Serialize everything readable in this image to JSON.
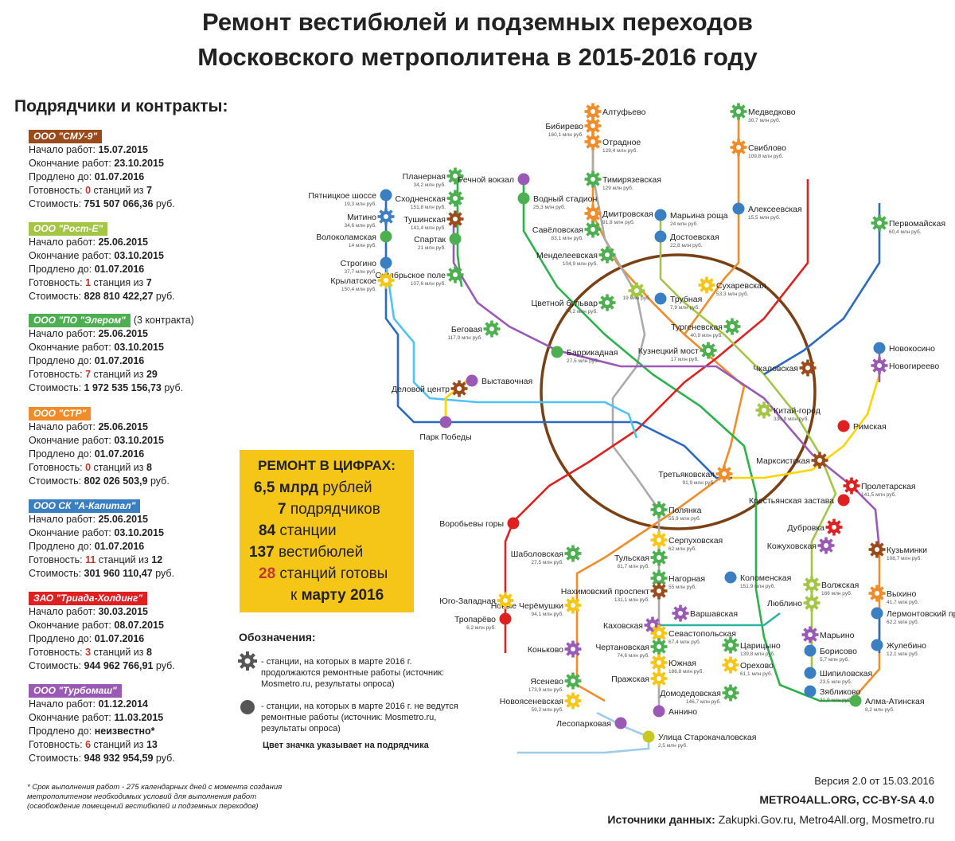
{
  "title_line1": "Ремонт вестибюлей и подземных переходов",
  "title_line2": "Московского метрополитена в 2015-2016 году",
  "contractors_heading": "Подрядчики и контракты:",
  "contractors": [
    {
      "name": "ООО \"СМУ-9\"",
      "color": "#9b4a1c",
      "note": "",
      "start_label": "Начало работ: ",
      "start": "15.07.2015",
      "end_label": "Окончание работ: ",
      "end": "23.10.2015",
      "ext_label": "Продлено до: ",
      "ext": "01.07.2016",
      "ready_label": "Готовность: ",
      "ready_done": "0",
      "ready_mid": " станций из ",
      "ready_total": "7",
      "cost_label": "Стоимость: ",
      "cost": "751 507 066,36",
      "cost_unit": " руб."
    },
    {
      "name": "ООО \"Рост-Е\"",
      "color": "#a3c644",
      "note": "",
      "start_label": "Начало работ: ",
      "start": "25.06.2015",
      "end_label": "Окончание работ:  ",
      "end": "03.10.2015",
      "ext_label": "Продлено до: ",
      "ext": "01.07.2016",
      "ready_label": "Готовность: ",
      "ready_done": "1",
      "ready_mid": " станция из ",
      "ready_total": "7",
      "cost_label": "Стоимость: ",
      "cost": "828 810 422,27",
      "cost_unit": " руб."
    },
    {
      "name": "ООО \"ПО \"Элером\"",
      "color": "#4caf50",
      "note": "(3 контракта)",
      "start_label": "Начало работ: ",
      "start": "25.06.2015",
      "end_label": "Окончание работ: ",
      "end": "03.10.2015",
      "ext_label": "Продлено до: ",
      "ext": "01.07.2016",
      "ready_label": "Готовность: ",
      "ready_done": "7",
      "ready_mid": " станций из ",
      "ready_total": "29",
      "cost_label": "Стоимость: ",
      "cost": "1 972 535 156,73",
      "cost_unit": " руб."
    },
    {
      "name": "ООО \"СТР\"",
      "color": "#f28c28",
      "note": "",
      "start_label": "Начало работ: ",
      "start": "25.06.2015",
      "end_label": "Окончание работ: ",
      "end": "03.10.2015",
      "ext_label": "Продлено до: ",
      "ext": "01.07.2016",
      "ready_label": "Готовность: ",
      "ready_done": "0",
      "ready_mid": " станций из ",
      "ready_total": "8",
      "cost_label": "Стоимость: ",
      "cost": "802 026 503,9",
      "cost_unit": " руб."
    },
    {
      "name": "ООО СК \"А-Капитал\"",
      "color": "#3a7fc1",
      "note": "",
      "start_label": "Начало работ: ",
      "start": "25.06.2015",
      "end_label": "Окончание работ: ",
      "end": "03.10.2015",
      "ext_label": "Продлено до: ",
      "ext": "01.07.2016",
      "ready_label": "Готовность: ",
      "ready_done": "11",
      "ready_mid": " станций из ",
      "ready_total": "12",
      "cost_label": "Стоимость: ",
      "cost": "301 960 110,47",
      "cost_unit": " руб."
    },
    {
      "name": "ЗАО \"Триада-Холдинг\"",
      "color": "#e02020",
      "note": "",
      "start_label": "Начало работ:  ",
      "start": "30.03.2015",
      "end_label": "Окончание работ:  ",
      "end": "08.07.2015",
      "ext_label": "Продлено до: ",
      "ext": "01.07.2016",
      "ready_label": "Готовность: ",
      "ready_done": "3",
      "ready_mid": " станций из ",
      "ready_total": "8",
      "cost_label": "Стоимость: ",
      "cost": "944 962 766,91",
      "cost_unit": " руб."
    },
    {
      "name": "ООО \"Турбомаш\"",
      "color": "#9b59b6",
      "note": "",
      "start_label": "Начало работ: ",
      "start": "01.12.2014",
      "end_label": "Окончание работ: ",
      "end": "11.03.2015",
      "ext_label": "Продлено до: ",
      "ext": "неизвестно*",
      "ready_label": "Готовность: ",
      "ready_done": "6",
      "ready_mid": " станций из ",
      "ready_total": "13",
      "cost_label": "Стоимость: ",
      "cost": "948 932 954,59",
      "cost_unit": " руб."
    }
  ],
  "summary": {
    "heading": "РЕМОНТ В ЦИФРАХ:",
    "l1_num": "6,5 млрд",
    "l1_text": " рублей",
    "l2_num": "7",
    "l2_text": " подрядчиков",
    "l3_num": "84",
    "l3_text": " станции",
    "l4_num": "137",
    "l4_text": " вестибюлей",
    "l5_num": "28",
    "l5_text": " станций готовы",
    "l6_text": "к ",
    "l6_bold": "марту 2016"
  },
  "legend": {
    "heading": "Обозначения:",
    "gear_text": "- станции, на которых в марте 2016 г. продолжаются ремонтные работы (источник: Mosmetro.ru, результаты опроса)",
    "dot_text": "- станции, на которых в марте 2016 г. не ведутся ремонтные работы (источник: Mosmetro.ru, результаты опроса)",
    "color_note": "Цвет значка указывает на подрядчика"
  },
  "footnote": "* Срок выполнения работ - 275 календарных дней с момента создания метрополитеном необходимых условий для выполнения работ (освобождение помещений вестибюлей и подземных переходов)",
  "version": "Версия 2.0 от 15.03.2016",
  "license": "METRO4ALL.ORG, CC-BY-SA 4.0",
  "sources_label": "Источники данных:",
  "sources_text": " Zakupki.Gov.ru, Metro4All.org, Mosmetro.ru",
  "stations": [
    {
      "name": "Алтуфьево",
      "cost": "",
      "type": "gear",
      "c": "#f28c28"
    },
    {
      "name": "Бибирево",
      "cost": "160,1 млн руб.",
      "type": "gear",
      "c": "#f28c28"
    },
    {
      "name": "Отрадное",
      "cost": "129,4 млн руб.",
      "type": "gear",
      "c": "#f28c28"
    },
    {
      "name": "Тимирязевская",
      "cost": "129 млн руб.",
      "type": "gear",
      "c": "#4caf50"
    },
    {
      "name": "Дмитровская",
      "cost": "91,8 млн руб.",
      "type": "gear",
      "c": "#f28c28"
    },
    {
      "name": "Савёловская",
      "cost": "83,1 млн руб.",
      "type": "gear",
      "c": "#4caf50"
    },
    {
      "name": "Менделеевская",
      "cost": "104,9 млн руб.",
      "type": "gear",
      "c": "#4caf50"
    },
    {
      "name": "Цветной бульвар",
      "cost": "74,2 млн руб.",
      "type": "gear",
      "c": "#4caf50"
    },
    {
      "name": "",
      "cost": "19 млн руб.",
      "type": "gear",
      "c": "#a3c644"
    },
    {
      "name": "Медведково",
      "cost": "30,7 млн руб.",
      "type": "gear",
      "c": "#4caf50"
    },
    {
      "name": "Свиблово",
      "cost": "109,8 млн руб.",
      "type": "gear",
      "c": "#f28c28"
    },
    {
      "name": "Алексеевская",
      "cost": "15,5 млн руб.",
      "type": "dot",
      "c": "#3a7fc1"
    },
    {
      "name": "Марьина роща",
      "cost": "24 млн руб.",
      "type": "dot",
      "c": "#3a7fc1"
    },
    {
      "name": "Достоевская",
      "cost": "22,8 млн руб.",
      "type": "dot",
      "c": "#3a7fc1"
    },
    {
      "name": "Трубная",
      "cost": "7,9 млн руб.",
      "type": "dot",
      "c": "#3a7fc1"
    },
    {
      "name": "Сухаревская",
      "cost": "53,3 млн руб.",
      "type": "gear",
      "c": "#f5c518"
    },
    {
      "name": "Тургеневская",
      "cost": "40,9 млн руб.",
      "type": "gear",
      "c": "#4caf50"
    },
    {
      "name": "Кузнецкий мост",
      "cost": "17 млн руб.",
      "type": "gear",
      "c": "#4caf50"
    },
    {
      "name": "Первомайская",
      "cost": "60,4 млн руб.",
      "type": "gear",
      "c": "#4caf50"
    },
    {
      "name": "Новокосино",
      "cost": "",
      "type": "dot",
      "c": "#3a7fc1"
    },
    {
      "name": "Новогиреево",
      "cost": "",
      "type": "gear",
      "c": "#9b59b6"
    },
    {
      "name": "Чкаловская",
      "cost": "",
      "type": "gear",
      "c": "#9b4a1c"
    },
    {
      "name": "Китай-город",
      "cost": "330,9 млн руб.",
      "type": "gear",
      "c": "#a3c644"
    },
    {
      "name": "Римская",
      "cost": "",
      "type": "dot",
      "c": "#e02020"
    },
    {
      "name": "Марксистская",
      "cost": "",
      "type": "gear",
      "c": "#9b4a1c"
    },
    {
      "name": "Пролетарская",
      "cost": "141,5 млн руб.",
      "type": "gear",
      "c": "#e02020"
    },
    {
      "name": "Крестьянская застава",
      "cost": "",
      "type": "dot",
      "c": "#e02020"
    },
    {
      "name": "Третьяковская",
      "cost": "91,9 млн руб.",
      "type": "gear",
      "c": "#f28c28"
    },
    {
      "name": "Полянка",
      "cost": "55,9 млн руб.",
      "type": "gear",
      "c": "#4caf50"
    },
    {
      "name": "Серпуховская",
      "cost": "62 млн руб.",
      "type": "gear",
      "c": "#f5c518"
    },
    {
      "name": "Тульская",
      "cost": "81,7 млн руб.",
      "type": "gear",
      "c": "#4caf50"
    },
    {
      "name": "Нагорная",
      "cost": "55 млн руб.",
      "type": "gear",
      "c": "#4caf50"
    },
    {
      "name": "Нахимовский проспект",
      "cost": "131,1 млн руб.",
      "type": "gear",
      "c": "#9b4a1c"
    },
    {
      "name": "Каховская",
      "cost": "",
      "type": "gear",
      "c": "#9b59b6"
    },
    {
      "name": "Варшавская",
      "cost": "",
      "type": "gear",
      "c": "#9b59b6"
    },
    {
      "name": "Севастопольская",
      "cost": "67,4 млн руб.",
      "type": "gear",
      "c": "#f5c518"
    },
    {
      "name": "Чертановская",
      "cost": "74,6 млн руб.",
      "type": "gear",
      "c": "#4caf50"
    },
    {
      "name": "Южная",
      "cost": "186,8 млн руб.",
      "type": "gear",
      "c": "#f5c518"
    },
    {
      "name": "Пражская",
      "cost": "",
      "type": "gear",
      "c": "#f5c518"
    },
    {
      "name": "Аннино",
      "cost": "",
      "type": "dot",
      "c": "#9b59b6"
    },
    {
      "name": "Улица Старокачаловская",
      "cost": "2,5 млн руб.",
      "type": "dot",
      "c": "#c8c820"
    },
    {
      "name": "Лесопарковая",
      "cost": "",
      "type": "dot",
      "c": "#9b59b6"
    },
    {
      "name": "Коломенская",
      "cost": "151,9 млн руб.",
      "type": "dot",
      "c": "#3a7fc1"
    },
    {
      "name": "Царицыно",
      "cost": "139,8 млн руб.",
      "type": "gear",
      "c": "#4caf50"
    },
    {
      "name": "Орехово",
      "cost": "61,1 млн руб.",
      "type": "gear",
      "c": "#f5c518"
    },
    {
      "name": "Домодедовская",
      "cost": "146,7 млн руб.",
      "type": "gear",
      "c": "#4caf50"
    },
    {
      "name": "Зябликово",
      "cost": "31,9 млн руб.",
      "type": "dot",
      "c": "#3a7fc1"
    },
    {
      "name": "Алма-Атинская",
      "cost": "8,2 млн руб.",
      "type": "dot",
      "c": "#4caf50"
    },
    {
      "name": "Шипиловская",
      "cost": "23,5 млн руб.",
      "type": "dot",
      "c": "#3a7fc1"
    },
    {
      "name": "Борисово",
      "cost": "5,7 млн руб.",
      "type": "dot",
      "c": "#3a7fc1"
    },
    {
      "name": "Марьино",
      "cost": "",
      "type": "gear",
      "c": "#9b59b6"
    },
    {
      "name": "Люблино",
      "cost": "",
      "type": "gear",
      "c": "#a3c644"
    },
    {
      "name": "Волжская",
      "cost": "166 млн руб.",
      "type": "gear",
      "c": "#a3c644"
    },
    {
      "name": "Кожуховская",
      "cost": "",
      "type": "gear",
      "c": "#9b59b6"
    },
    {
      "name": "Дубровка",
      "cost": "",
      "type": "gear",
      "c": "#e02020"
    },
    {
      "name": "Кузьминки",
      "cost": "108,7 млн руб.",
      "type": "gear",
      "c": "#9b4a1c"
    },
    {
      "name": "Выхино",
      "cost": "41,7 млн руб.",
      "type": "gear",
      "c": "#f28c28"
    },
    {
      "name": "Лермонтовский проспект",
      "cost": "62,2 млн руб.",
      "type": "dot",
      "c": "#3a7fc1"
    },
    {
      "name": "Жулебино",
      "cost": "12,1 млн руб.",
      "type": "dot",
      "c": "#3a7fc1"
    },
    {
      "name": "Воробьевы горы",
      "cost": "",
      "type": "dot",
      "c": "#e02020"
    },
    {
      "name": "Шаболовская",
      "cost": "27,5 млн руб.",
      "type": "gear",
      "c": "#4caf50"
    },
    {
      "name": "Новые Черёмушки",
      "cost": "94,1 млн руб.",
      "type": "gear",
      "c": "#f5c518"
    },
    {
      "name": "Юго-Западная",
      "cost": "",
      "type": "gear",
      "c": "#f5c518"
    },
    {
      "name": "Тропарёво",
      "cost": "6,2 млн руб.",
      "type": "dot",
      "c": "#e02020"
    },
    {
      "name": "Коньково",
      "cost": "",
      "type": "gear",
      "c": "#9b59b6"
    },
    {
      "name": "Ясенево",
      "cost": "173,9 млн руб.",
      "type": "gear",
      "c": "#4caf50"
    },
    {
      "name": "Новоясеневская",
      "cost": "59,2 млн руб.",
      "type": "gear",
      "c": "#f5c518"
    },
    {
      "name": "Баррикадная",
      "cost": "27,5 млн руб.",
      "type": "dot",
      "c": "#4caf50"
    },
    {
      "name": "Беговая",
      "cost": "117,9 млн руб.",
      "type": "gear",
      "c": "#4caf50"
    },
    {
      "name": "Октябрьское поле",
      "cost": "107,6 млн руб.",
      "type": "gear",
      "c": "#4caf50"
    },
    {
      "name": "Спартак",
      "cost": "21 млн руб.",
      "type": "dot",
      "c": "#4caf50"
    },
    {
      "name": "Тушинская",
      "cost": "141,4 млн руб.",
      "type": "gear",
      "c": "#9b4a1c"
    },
    {
      "name": "Сходненская",
      "cost": "151,8 млн руб.",
      "type": "gear",
      "c": "#4caf50"
    },
    {
      "name": "Планерная",
      "cost": "34,2 млн руб.",
      "type": "gear",
      "c": "#4caf50"
    },
    {
      "name": "Речной вокзал",
      "cost": "",
      "type": "dot",
      "c": "#9b59b6"
    },
    {
      "name": "Водный стадион",
      "cost": "25,3 млн руб.",
      "type": "dot",
      "c": "#4caf50"
    },
    {
      "name": "Пятницкое шоссе",
      "cost": "19,3 млн руб.",
      "type": "dot",
      "c": "#3a7fc1"
    },
    {
      "name": "Митино",
      "cost": "34,6 млн руб.",
      "type": "gear",
      "c": "#3a7fc1"
    },
    {
      "name": "Волоколамская",
      "cost": "14 млн руб.",
      "type": "dot",
      "c": "#4caf50"
    },
    {
      "name": "Строгино",
      "cost": "37,7 млн руб.",
      "type": "dot",
      "c": "#3a7fc1"
    },
    {
      "name": "Крылатское",
      "cost": "150,4 млн руб.",
      "type": "gear",
      "c": "#f5c518"
    },
    {
      "name": "Деловой центр",
      "cost": "",
      "type": "gear",
      "c": "#9b4a1c"
    },
    {
      "name": "Выставочная",
      "cost": "",
      "type": "dot",
      "c": "#9b59b6"
    },
    {
      "name": "Парк Победы",
      "cost": "",
      "type": "dot",
      "c": "#9b59b6"
    }
  ]
}
